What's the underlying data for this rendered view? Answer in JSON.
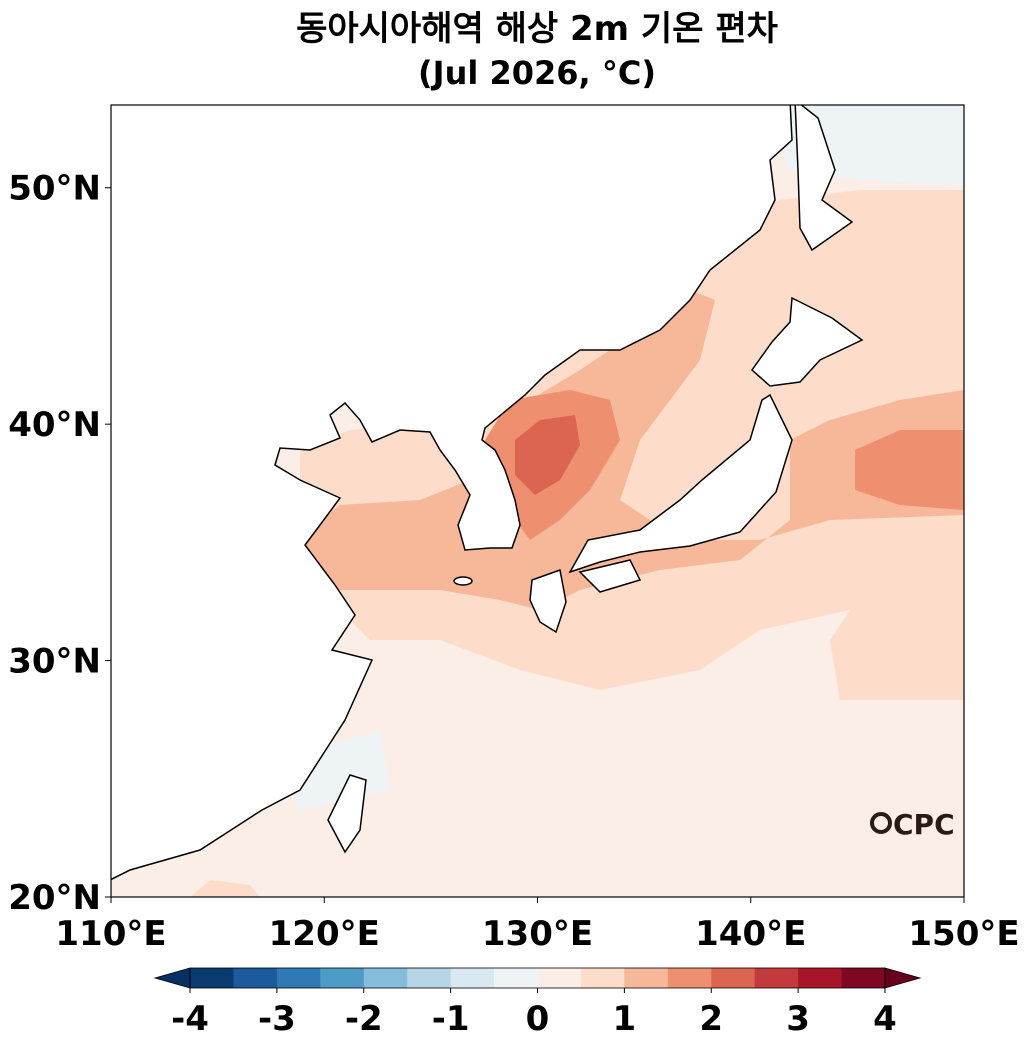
{
  "header": {
    "title": "동아시아해역 해상 2m 기온 편차",
    "subtitle": "(Jul 2026, °C)"
  },
  "map": {
    "xlim": [
      110,
      150
    ],
    "ylim": [
      20,
      53.5
    ],
    "xticks": [
      {
        "value": 110,
        "label": "110°E"
      },
      {
        "value": 120,
        "label": "120°E"
      },
      {
        "value": 130,
        "label": "130°E"
      },
      {
        "value": 140,
        "label": "140°E"
      },
      {
        "value": 150,
        "label": "150°E"
      }
    ],
    "yticks": [
      {
        "value": 20,
        "label": "20°N"
      },
      {
        "value": 30,
        "label": "30°N"
      },
      {
        "value": 40,
        "label": "40°N"
      },
      {
        "value": 50,
        "label": "50°N"
      }
    ]
  },
  "colorbar": {
    "lim": [
      -4,
      4
    ],
    "ticks": [
      -4,
      -3,
      -2,
      -1,
      0,
      1,
      2,
      3,
      4
    ],
    "colors": [
      "#0a3b70",
      "#1c5a9e",
      "#2f79b5",
      "#4f9bc7",
      "#86bcdb",
      "#b6d6e8",
      "#d9e9f1",
      "#eef4f6",
      "#fbeee6",
      "#fddcc9",
      "#f7b799",
      "#ee8f70",
      "#db6551",
      "#c23a3b",
      "#a81529",
      "#7e0822"
    ],
    "extend_colors": [
      "#063063",
      "#67001f"
    ]
  },
  "logo": {
    "text": "CPC"
  }
}
